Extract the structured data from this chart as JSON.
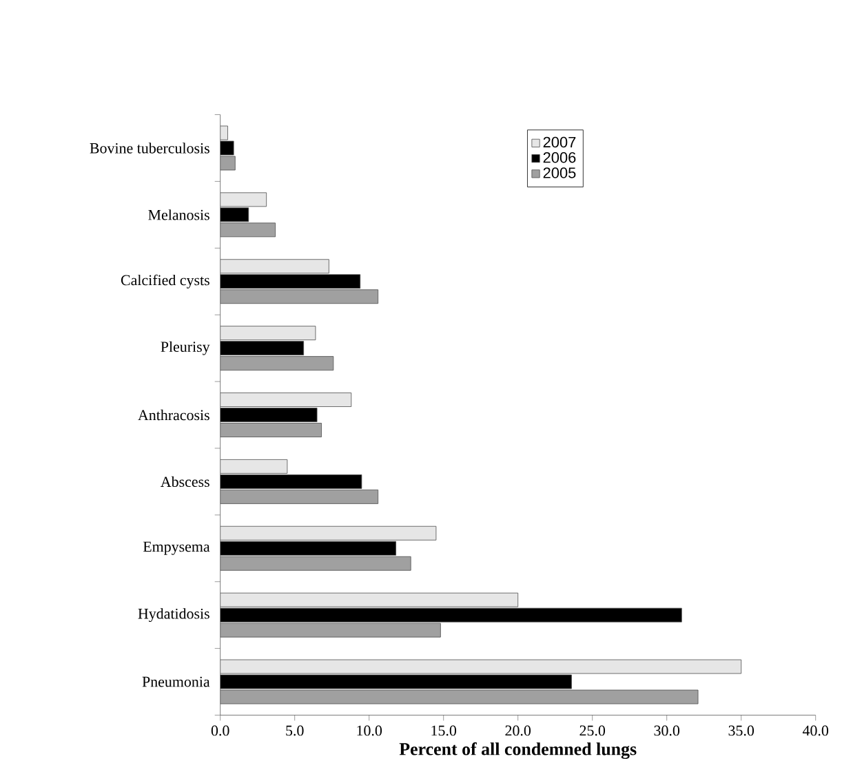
{
  "chart_data": {
    "type": "bar",
    "orientation": "horizontal",
    "xlabel": "Percent of all condemned lungs",
    "categories": [
      "Bovine tuberculosis",
      "Melanosis",
      "Calcified cysts",
      "Pleurisy",
      "Anthracosis",
      "Abscess",
      "Empysema",
      "Hydatidosis",
      "Pneumonia"
    ],
    "series": [
      {
        "name": "2007",
        "color": "#e6e6e6",
        "values": [
          0.5,
          3.1,
          7.3,
          6.4,
          8.8,
          4.5,
          14.5,
          20.0,
          35.0
        ]
      },
      {
        "name": "2006",
        "color": "#000000",
        "values": [
          0.9,
          1.9,
          9.4,
          5.6,
          6.5,
          9.5,
          11.8,
          31.0,
          23.6
        ]
      },
      {
        "name": "2005",
        "color": "#a0a0a0",
        "values": [
          1.0,
          3.7,
          10.6,
          7.6,
          6.8,
          10.6,
          12.8,
          14.8,
          32.1
        ]
      }
    ],
    "xlim": [
      0,
      40
    ],
    "xticks": [
      {
        "value": 0,
        "label": "0.0"
      },
      {
        "value": 5,
        "label": "5.0"
      },
      {
        "value": 10,
        "label": "10.0"
      },
      {
        "value": 15,
        "label": "15.0"
      },
      {
        "value": 20,
        "label": "20.0"
      },
      {
        "value": 25,
        "label": "25.0"
      },
      {
        "value": 30,
        "label": "30.0"
      },
      {
        "value": 35,
        "label": "35.0"
      },
      {
        "value": 40,
        "label": "40.0"
      }
    ],
    "legend": "top right",
    "grid": false
  }
}
